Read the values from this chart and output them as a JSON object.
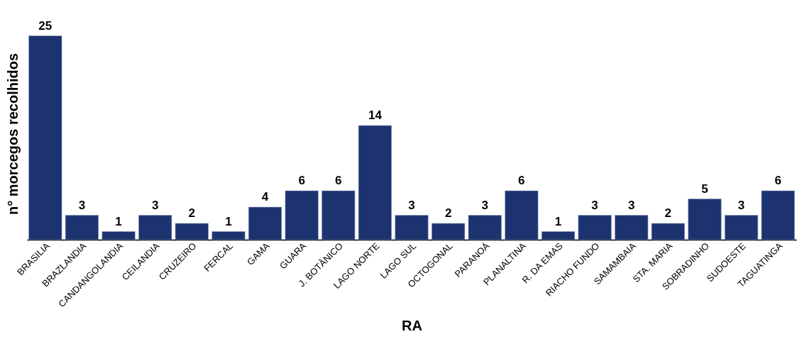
{
  "chart_data": {
    "type": "bar",
    "xlabel": "RA",
    "ylabel": "n° morcegos recolhidos",
    "categories": [
      "BRASILIA",
      "BRAZLANDIA",
      "CANDANGOLANDIA",
      "CEILANDIA",
      "CRUZEIRO",
      "FERCAL",
      "GAMA",
      "GUARA",
      "J. BOTÂNICO",
      "LAGO NORTE",
      "LAGO SUL",
      "OCTOGONAL",
      "PARANOÁ",
      "PLANALTINA",
      "R. DA EMAS",
      "RIACHO FUNDO",
      "SAMAMBAIA",
      "STA. MARIA",
      "SOBRADINHO",
      "SUDOESTE",
      "TAGUATINGA"
    ],
    "values": [
      25,
      3,
      1,
      3,
      2,
      1,
      4,
      6,
      6,
      14,
      3,
      2,
      3,
      6,
      1,
      3,
      3,
      2,
      5,
      3,
      6
    ],
    "color": "#1d3370",
    "data_labels": true,
    "grid": false
  }
}
